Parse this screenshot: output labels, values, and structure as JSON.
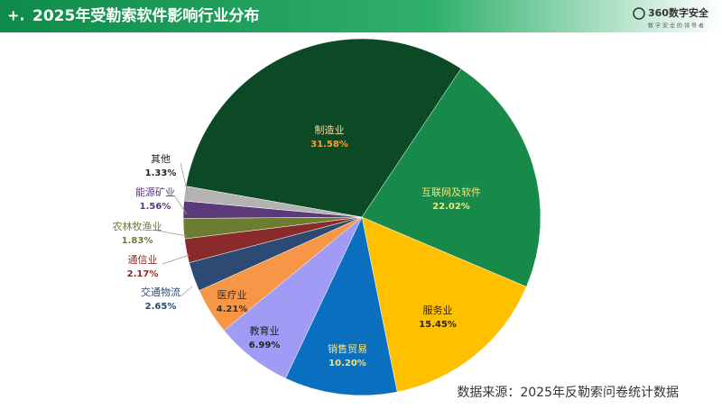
{
  "header": {
    "title": "2025年受勒索软件影响行业分布",
    "logo": "360数字安全",
    "slogan": "数字安全的领导者"
  },
  "chart_data": {
    "type": "pie",
    "categories": [
      "制造业",
      "互联网及软件",
      "服务业",
      "销售贸易",
      "教育业",
      "医疗业",
      "交通物流",
      "通信业",
      "农林牧渔业",
      "能源矿业",
      "其他"
    ],
    "values": [
      31.58,
      22.02,
      15.45,
      10.2,
      6.99,
      4.21,
      2.65,
      2.17,
      1.83,
      1.56,
      1.33
    ],
    "value_labels": [
      "31.58%",
      "22.02%",
      "15.45%",
      "10.20%",
      "6.99%",
      "4.21%",
      "2.65%",
      "2.17%",
      "1.83%",
      "1.56%",
      "1.33%"
    ],
    "colors": [
      "#0c4a25",
      "#178a4a",
      "#ffc000",
      "#0b6fc0",
      "#a09cf6",
      "#f79646",
      "#2c4a74",
      "#8a2b2b",
      "#6a7d30",
      "#5b3a7c",
      "#b3b3b3"
    ]
  },
  "footer": {
    "source": "数据来源：2025年反勒索问卷统计数据"
  }
}
